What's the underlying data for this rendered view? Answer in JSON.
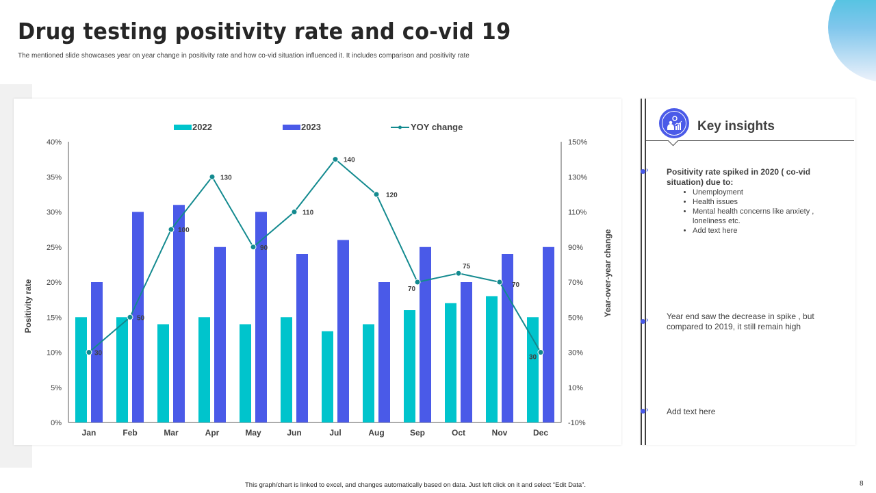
{
  "slide": {
    "title": "Drug testing positivity rate and co-vid 19",
    "subtitle": "The mentioned  slide showcases year on year change in positivity rate and how co-vid situation influenced it. It includes comparison and positivity rate",
    "footer_note": "This graph/chart is linked to excel, and changes automatically based on data. Just left click on it and select “Edit Data”.",
    "page_number": "8"
  },
  "colors": {
    "series_2022": "#00c4cc",
    "series_2023": "#4a5ae8",
    "yoy_line": "#138a8f",
    "accent": "#4a5ae8"
  },
  "chart_data": {
    "type": "bar",
    "title": "",
    "categories": [
      "Jan",
      "Feb",
      "Mar",
      "Apr",
      "May",
      "Jun",
      "Jul",
      "Aug",
      "Sep",
      "Oct",
      "Nov",
      "Dec"
    ],
    "series": [
      {
        "name": "2022",
        "type": "bar",
        "axis": "left",
        "values": [
          15,
          15,
          14,
          15,
          14,
          15,
          13,
          14,
          16,
          17,
          18,
          15
        ]
      },
      {
        "name": "2023",
        "type": "bar",
        "axis": "left",
        "values": [
          20,
          30,
          31,
          25,
          30,
          24,
          26,
          20,
          25,
          20,
          24,
          25
        ]
      },
      {
        "name": "YOY change",
        "type": "line",
        "axis": "right",
        "values": [
          30,
          50,
          100,
          130,
          90,
          110,
          140,
          120,
          70,
          75,
          70,
          30
        ],
        "data_labels": [
          "30",
          "50",
          "100",
          "130",
          "90",
          "110",
          "140",
          "120",
          "70",
          "75",
          "70",
          "30"
        ]
      }
    ],
    "xlabel": "",
    "ylabel": "Positivity rate",
    "y2label": "Year-over-year change",
    "ylim": [
      0,
      40
    ],
    "y_ticks": [
      "0%",
      "5%",
      "10%",
      "15%",
      "20%",
      "25%",
      "30%",
      "35%",
      "40%"
    ],
    "y_tick_values": [
      0,
      5,
      10,
      15,
      20,
      25,
      30,
      35,
      40
    ],
    "y2lim": [
      -10,
      150
    ],
    "y2_ticks": [
      "-10%",
      "10%",
      "30%",
      "50%",
      "70%",
      "90%",
      "110%",
      "130%",
      "150%"
    ],
    "y2_tick_values": [
      -10,
      10,
      30,
      50,
      70,
      90,
      110,
      130,
      150
    ],
    "legend": [
      "2022",
      "2023",
      "YOY change"
    ],
    "legend_position": "top",
    "grid": false
  },
  "insights": {
    "title": "Key insights",
    "icon": "analytics-person-gear-icon",
    "items": [
      {
        "heading": "Positivity  rate spiked in 2020 ( co-vid situation)  due to:",
        "bullets": [
          "Unemployment",
          "Health issues",
          "Mental health concerns like anxiety , loneliness etc.",
          "Add text here"
        ]
      },
      {
        "text": "Year end saw the decrease  in spike , but compared  to 2019,  it still remain  high"
      },
      {
        "text": "Add text here"
      }
    ]
  }
}
